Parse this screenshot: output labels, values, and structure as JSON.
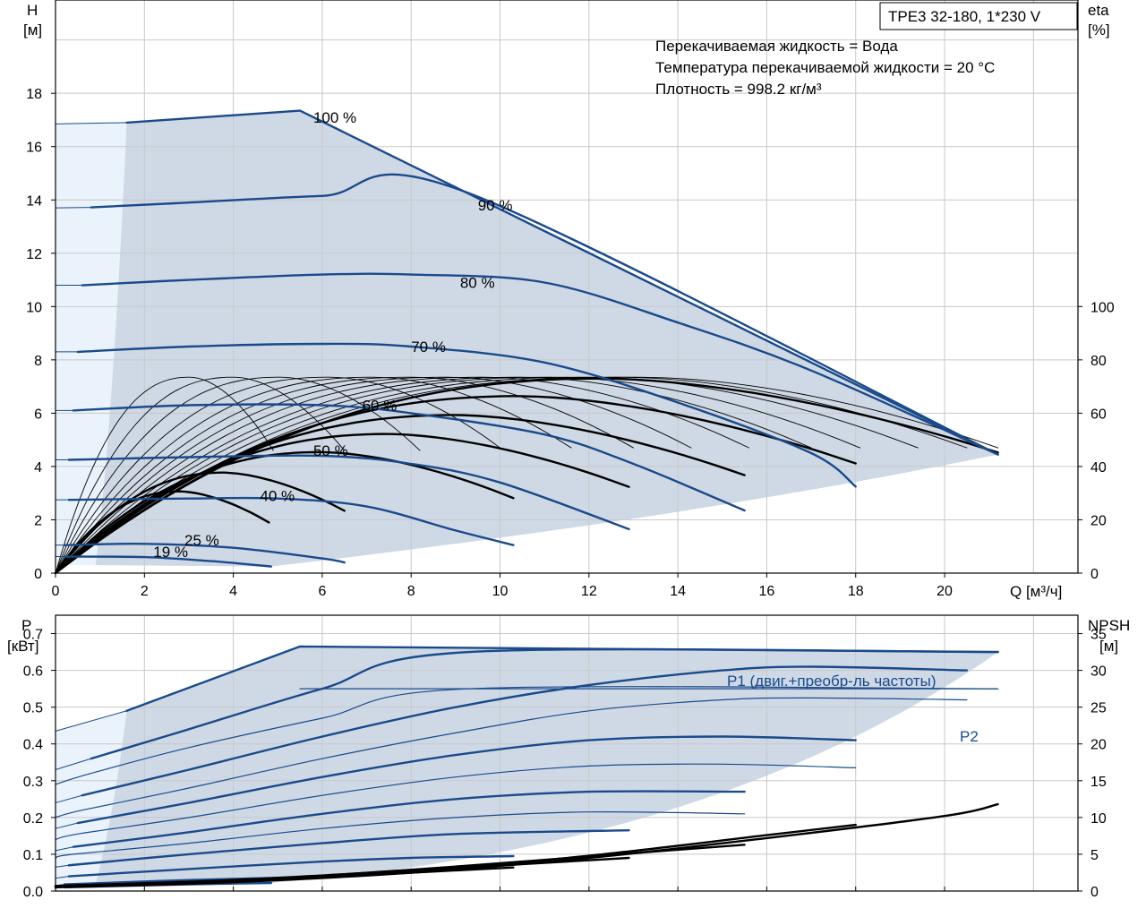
{
  "title_box": "TPE3 32-180, 1*230 V",
  "info_lines": [
    "Перекачиваемая жидкость = Вода",
    "Температура перекачиваемой жидкости = 20 °C",
    "Плотность = 998.2 кг/м³"
  ],
  "colors": {
    "curve_blue": "#1a4a8a",
    "fill_gray": "#cfd9e6",
    "fill_light": "#eaf3fb",
    "grid": "#c8c8c8"
  },
  "chart_data": [
    {
      "type": "line",
      "title": "TPE3 32-180, 1*230 V",
      "ylabel_left": [
        "H",
        "[м]"
      ],
      "ylabel_right": [
        "eta",
        "[%]"
      ],
      "xlabel": "Q [м³/ч]",
      "xlim": [
        0,
        23
      ],
      "ylim": [
        0,
        21.5
      ],
      "eta_ylim": [
        0,
        215
      ],
      "x_ticks": [
        0,
        2,
        4,
        6,
        8,
        10,
        12,
        14,
        16,
        18,
        20
      ],
      "y_ticks": [
        0,
        2,
        4,
        6,
        8,
        10,
        12,
        14,
        16,
        18
      ],
      "eta_ticks": [
        0,
        20,
        40,
        60,
        80,
        100
      ],
      "head_curves": [
        {
          "name": "100 %",
          "label_at": [
            5.8,
            17.1
          ],
          "x": [
            0,
            1.6,
            5.5,
            21.2
          ],
          "y": [
            16.85,
            16.9,
            17.35,
            4.45
          ]
        },
        {
          "name": "90 %",
          "label_at": [
            9.5,
            13.8
          ],
          "x": [
            0,
            0.8,
            3,
            6,
            9.3,
            21.2
          ],
          "y": [
            13.7,
            13.72,
            13.9,
            14.15,
            14.25,
            4.45
          ]
        },
        {
          "name": "80 %",
          "label_at": [
            9.1,
            10.9
          ],
          "x": [
            0,
            0.6,
            3,
            6,
            8,
            11,
            14,
            17,
            21.2
          ],
          "y": [
            10.8,
            10.8,
            11.0,
            11.2,
            11.2,
            10.9,
            9.4,
            7.6,
            4.45
          ]
        },
        {
          "name": "70 %",
          "label_at": [
            8.0,
            8.5
          ],
          "x": [
            0,
            0.5,
            3,
            6,
            8,
            11,
            14,
            17,
            18.0
          ],
          "y": [
            8.3,
            8.3,
            8.5,
            8.6,
            8.5,
            7.9,
            6.4,
            4.5,
            3.25
          ]
        },
        {
          "name": "60 %",
          "label_at": [
            6.9,
            6.3
          ],
          "x": [
            0,
            0.4,
            3,
            6,
            8,
            11,
            13,
            15.5
          ],
          "y": [
            6.1,
            6.1,
            6.3,
            6.3,
            6.0,
            5.2,
            4.1,
            2.35
          ]
        },
        {
          "name": "50 %",
          "label_at": [
            5.8,
            4.6
          ],
          "x": [
            0,
            0.3,
            3,
            6,
            8,
            10,
            12.9
          ],
          "y": [
            4.25,
            4.25,
            4.35,
            4.4,
            4.1,
            3.4,
            1.65
          ]
        },
        {
          "name": "40 %",
          "label_at": [
            4.6,
            2.9
          ],
          "x": [
            0,
            0.3,
            3,
            5,
            7,
            9,
            10.3
          ],
          "y": [
            2.75,
            2.75,
            2.8,
            2.8,
            2.5,
            1.6,
            1.05
          ]
        },
        {
          "name": "25 %",
          "label_at": [
            2.9,
            1.25
          ],
          "x": [
            0,
            0.2,
            2,
            4,
            6,
            6.5
          ],
          "y": [
            1.05,
            1.05,
            1.1,
            0.95,
            0.55,
            0.4
          ]
        },
        {
          "name": "19 %",
          "label_at": [
            2.2,
            0.8
          ],
          "x": [
            0,
            0.2,
            2,
            3.5,
            4.85
          ],
          "y": [
            0.62,
            0.62,
            0.6,
            0.45,
            0.25
          ]
        }
      ],
      "curve_labels": [
        "100 %",
        "90 %",
        "80 %",
        "70 %",
        "60 %",
        "50 %",
        "40 %",
        "25 %",
        "19 %"
      ],
      "efficiency_peaks_eta": [
        {
          "x_end": 4.8,
          "peak": 73
        },
        {
          "x_end": 6.5,
          "peak": 73
        },
        {
          "x_end": 10.3,
          "peak": 74
        },
        {
          "x_end": 12.9,
          "peak": 73.5
        },
        {
          "x_end": 15.5,
          "peak": 73.5
        },
        {
          "x_end": 18.0,
          "peak": 73.5
        },
        {
          "x_end": 21.2,
          "peak": 73
        }
      ]
    },
    {
      "type": "line",
      "ylabel_left": [
        "P",
        "[кВт]"
      ],
      "ylabel_right": [
        "NPSH",
        "[м]"
      ],
      "xlim": [
        0,
        23
      ],
      "ylim": [
        0,
        0.75
      ],
      "npsh_ylim": [
        0,
        37.5
      ],
      "y_ticks": [
        0,
        0.1,
        0.2,
        0.3,
        0.4,
        0.5,
        0.6,
        0.7
      ],
      "npsh_ticks": [
        0,
        5,
        10,
        15,
        20,
        25,
        30,
        35
      ],
      "series_labels": {
        "p1": "P1 (двиг.+преобр-ль частоты)",
        "p2": "P2"
      },
      "p1_curves": [
        {
          "x": [
            0,
            1.6,
            5.5,
            21.2
          ],
          "y": [
            0.435,
            0.49,
            0.665,
            0.65
          ]
        },
        {
          "x": [
            0,
            0.8,
            3,
            6,
            9.3,
            21.2
          ],
          "y": [
            0.33,
            0.36,
            0.44,
            0.55,
            0.65,
            0.65
          ]
        },
        {
          "x": [
            0,
            0.6,
            3,
            6,
            9,
            12,
            15,
            17,
            20.5
          ],
          "y": [
            0.24,
            0.26,
            0.33,
            0.42,
            0.5,
            0.56,
            0.6,
            0.61,
            0.6
          ]
        },
        {
          "x": [
            0,
            0.5,
            3,
            6,
            9,
            12,
            15,
            18.0
          ],
          "y": [
            0.17,
            0.185,
            0.24,
            0.31,
            0.37,
            0.41,
            0.42,
            0.41
          ]
        },
        {
          "x": [
            0,
            0.4,
            3,
            6,
            9,
            12,
            15.5
          ],
          "y": [
            0.11,
            0.12,
            0.16,
            0.21,
            0.25,
            0.27,
            0.27
          ]
        },
        {
          "x": [
            0,
            0.3,
            3,
            6,
            9,
            12.9
          ],
          "y": [
            0.065,
            0.07,
            0.1,
            0.13,
            0.155,
            0.165
          ]
        },
        {
          "x": [
            0,
            0.3,
            3,
            6,
            8,
            10.3
          ],
          "y": [
            0.035,
            0.04,
            0.06,
            0.08,
            0.09,
            0.095
          ]
        },
        {
          "x": [
            0,
            0.2,
            3,
            6.5
          ],
          "y": [
            0.015,
            0.018,
            0.03,
            0.04
          ]
        },
        {
          "x": [
            0,
            0.2,
            3,
            4.85
          ],
          "y": [
            0.008,
            0.01,
            0.018,
            0.022
          ]
        }
      ],
      "p2_curves": [
        {
          "x": [
            5.5,
            21.2
          ],
          "y": [
            0.55,
            0.55
          ]
        },
        {
          "x": [
            0,
            0.8,
            3,
            6,
            9.3,
            21.2
          ],
          "y": [
            0.29,
            0.32,
            0.39,
            0.47,
            0.55,
            0.55
          ]
        },
        {
          "x": [
            0,
            0.6,
            3,
            6,
            9,
            12,
            15,
            17,
            20.5
          ],
          "y": [
            0.2,
            0.22,
            0.28,
            0.36,
            0.43,
            0.49,
            0.52,
            0.525,
            0.52
          ]
        },
        {
          "x": [
            0,
            0.5,
            3,
            6,
            9,
            12,
            15,
            18.0
          ],
          "y": [
            0.14,
            0.155,
            0.2,
            0.26,
            0.31,
            0.34,
            0.345,
            0.335
          ]
        },
        {
          "x": [
            0,
            0.4,
            3,
            6,
            9,
            12,
            15.5
          ],
          "y": [
            0.09,
            0.1,
            0.13,
            0.17,
            0.2,
            0.215,
            0.21
          ]
        }
      ],
      "npsh_curves": [
        {
          "x": [
            0,
            4,
            8,
            12,
            16,
            20,
            21.2
          ],
          "y": [
            0.5,
            1.2,
            2.5,
            4.5,
            7.2,
            10.2,
            11.8
          ]
        },
        {
          "x": [
            0,
            4,
            8,
            12,
            16,
            18.0
          ],
          "y": [
            0.6,
            1.3,
            2.7,
            4.8,
            7.6,
            9.0
          ]
        },
        {
          "x": [
            0,
            4,
            8,
            12,
            15.5
          ],
          "y": [
            0.6,
            1.4,
            2.9,
            4.7,
            6.3
          ]
        },
        {
          "x": [
            0,
            4,
            8,
            12.9
          ],
          "y": [
            0.7,
            1.5,
            2.8,
            4.5
          ]
        },
        {
          "x": [
            0,
            4,
            8,
            10.3
          ],
          "y": [
            0.7,
            1.4,
            2.5,
            3.2
          ]
        }
      ]
    }
  ]
}
